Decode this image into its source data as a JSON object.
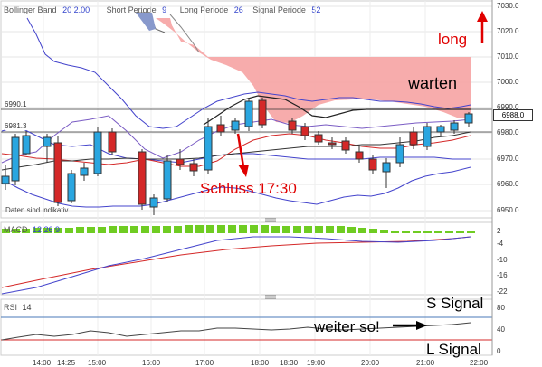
{
  "header": {
    "bb_label": "Bollinger Band",
    "bb_values": "20  2.00",
    "short_label": "Short Periode",
    "short_value": "9",
    "long_label": "Long Periode",
    "long_value": "26",
    "signal_label": "Signal Periode",
    "signal_value": "52"
  },
  "price_axis": [
    "7030.0",
    "7020.0",
    "7010.0",
    "7000.0",
    "6990.0",
    "6980.0",
    "6970.0",
    "6960.0",
    "6950.0"
  ],
  "price_tag": "6988.0",
  "levels": {
    "upper": "6990.1",
    "lower": "6981.3"
  },
  "watermark": "Daten sind indikativ",
  "annotations": {
    "long": "long",
    "warten": "warten",
    "schluss": "Schluss 17:30",
    "s_signal": "S Signal",
    "weiter": "weiter so!",
    "l_signal": "L Signal"
  },
  "macd": {
    "label": "MACD",
    "values": "12  26  9",
    "axis": [
      "2",
      "-4",
      "-10",
      "-16",
      "-22"
    ]
  },
  "rsi": {
    "label": "RSI",
    "value": "14",
    "axis": [
      "80",
      "40",
      "0"
    ]
  },
  "time_axis": [
    "14:00",
    "14:25",
    "15:00",
    "16:00",
    "17:00",
    "18:00",
    "18:30",
    "19:00",
    "20:00",
    "21:00",
    "22:00"
  ],
  "colors": {
    "up": "#2aa6e0",
    "down": "#d42828",
    "band": "#4444cc",
    "cloud": "#f4a0a0",
    "annot": "#e00000"
  }
}
